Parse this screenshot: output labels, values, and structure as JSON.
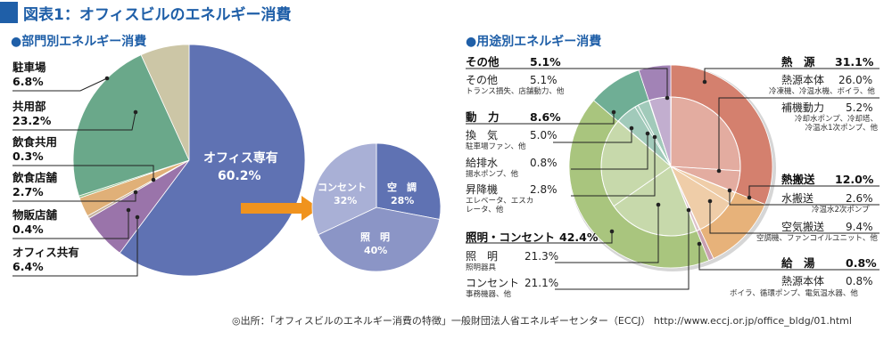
{
  "page": {
    "title": "図表1：オフィスビルのエネルギー消費",
    "credit": "◎出所：「オフィスビルのエネルギー消費の特徴」一般財団法人省エネルギーセンター（ECCJ） http://www.eccj.or.jp/office_bldg/01.html"
  },
  "chart_data": [
    {
      "type": "pie",
      "title": "●部門別エネルギー消費",
      "slices": [
        {
          "label": "オフィス専有",
          "value": 60.2,
          "value_text": "60.2%",
          "color": "#5f72b3"
        },
        {
          "label": "オフィス共有",
          "value": 6.4,
          "value_text": "6.4%",
          "color": "#9a74aa"
        },
        {
          "label": "物販店舗",
          "value": 0.4,
          "value_text": "0.4%",
          "color": "#c7b39f"
        },
        {
          "label": "飲食店舗",
          "value": 2.7,
          "value_text": "2.7%",
          "color": "#e0b078"
        },
        {
          "label": "飲食共用",
          "value": 0.3,
          "value_text": "0.3%",
          "color": "#8fbf8a"
        },
        {
          "label": "共用部",
          "value": 23.2,
          "value_text": "23.2%",
          "color": "#6aa88a"
        },
        {
          "label": "駐車場",
          "value": 6.8,
          "value_text": "6.8%",
          "color": "#ccc6a6"
        }
      ]
    },
    {
      "type": "pie",
      "title": "",
      "slices": [
        {
          "label": "空　調",
          "value": 28,
          "value_text": "28%",
          "color": "#5f72b3"
        },
        {
          "label": "照　明",
          "value": 40,
          "value_text": "40%",
          "color": "#8b95c6"
        },
        {
          "label": "コンセント",
          "value": 32,
          "value_text": "32%",
          "color": "#a9b0d6"
        }
      ]
    },
    {
      "type": "pie",
      "title": "●用途別エネルギー消費",
      "outer": [
        {
          "label": "熱　源",
          "value": 31.1,
          "value_text": "31.1%",
          "color": "#d4806e"
        },
        {
          "label": "熱搬送",
          "value": 12.0,
          "value_text": "12.0%",
          "color": "#e7b27a"
        },
        {
          "label": "給　湯",
          "value": 0.8,
          "value_text": "0.8%",
          "color": "#c9a0b0"
        },
        {
          "label": "照明・コンセント",
          "value": 42.4,
          "value_text": "42.4%",
          "color": "#a9c57e"
        },
        {
          "label": "動　力",
          "value": 8.6,
          "value_text": "8.6%",
          "color": "#6fae95"
        },
        {
          "label": "その他",
          "value": 5.1,
          "value_text": "5.1%",
          "color": "#a283b6"
        }
      ],
      "inner": [
        {
          "group": "熱　源",
          "label": "熱源本体",
          "value": 26.0,
          "value_text": "26.0%",
          "sub": "冷凍機、冷温水機、ボイラ、他"
        },
        {
          "group": "熱　源",
          "label": "補機動力",
          "value": 5.2,
          "value_text": "5.2%",
          "sub": "冷却水ポンプ、冷却塔、冷温水1次ポンプ、他"
        },
        {
          "group": "熱搬送",
          "label": "水搬送",
          "value": 2.6,
          "value_text": "2.6%",
          "sub": "冷温水2次ポンプ"
        },
        {
          "group": "熱搬送",
          "label": "空気搬送",
          "value": 9.4,
          "value_text": "9.4%",
          "sub": "空調機、ファンコイルユニット、他"
        },
        {
          "group": "給　湯",
          "label": "熱源本体",
          "value": 0.8,
          "value_text": "0.8%",
          "sub": "ボイラ、循環ポンプ、電気温水器、他"
        },
        {
          "group": "照明・コンセント",
          "label": "照　明",
          "value": 21.3,
          "value_text": "21.3%",
          "sub": "照明器具"
        },
        {
          "group": "照明・コンセント",
          "label": "コンセント",
          "value": 21.1,
          "value_text": "21.1%",
          "sub": "事務機器、他"
        },
        {
          "group": "動　力",
          "label": "換　気",
          "value": 5.0,
          "value_text": "5.0%",
          "sub": "駐車場ファン、他"
        },
        {
          "group": "動　力",
          "label": "給排水",
          "value": 0.8,
          "value_text": "0.8%",
          "sub": "揚水ポンプ、他"
        },
        {
          "group": "動　力",
          "label": "昇降機",
          "value": 2.8,
          "value_text": "2.8%",
          "sub": "エレベータ、エスカレータ、他"
        },
        {
          "group": "その他",
          "label": "その他",
          "value": 5.1,
          "value_text": "5.1%",
          "sub": "トランス損失、店舗動力、他"
        }
      ]
    }
  ]
}
